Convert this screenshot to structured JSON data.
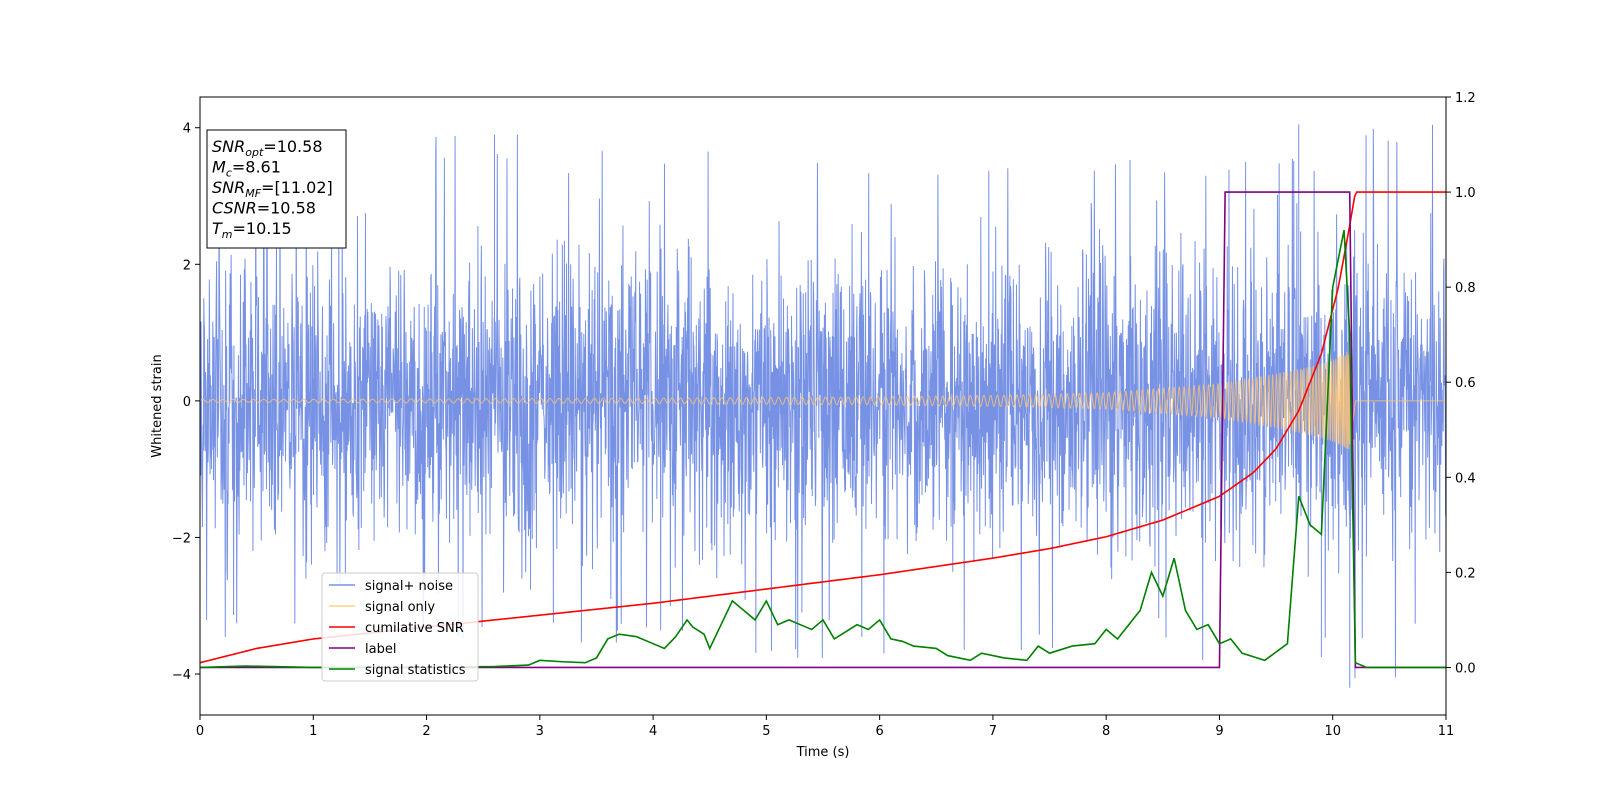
{
  "chart_data": {
    "type": "line",
    "xlabel": "Time (s)",
    "ylabel": "Whitened strain",
    "xlim": [
      0,
      11
    ],
    "ylim": [
      -4.6,
      4.45
    ],
    "y2lim": [
      -0.1,
      1.2
    ],
    "xticks": [
      "0",
      "1",
      "2",
      "3",
      "4",
      "5",
      "6",
      "7",
      "8",
      "9",
      "10",
      "11"
    ],
    "yticks": [
      "4",
      "2",
      "0",
      "−2",
      "−4"
    ],
    "y2ticks": [
      "1.2",
      "1.0",
      "0.8",
      "0.6",
      "0.4",
      "0.2",
      "0.0"
    ],
    "annotations": [
      {
        "base": "SNR",
        "sub": "opt",
        "value": "=10.58"
      },
      {
        "base": "M",
        "sub": "c",
        "value": "=8.61"
      },
      {
        "base": "SNR",
        "sub": "MF",
        "value": "=[11.02]"
      },
      {
        "base": "CSNR",
        "sub": "",
        "value": "=10.58"
      },
      {
        "base": "T",
        "sub": "m",
        "value": "=10.15"
      }
    ],
    "legend_position": "lower-left",
    "series": [
      {
        "name": "signal+ noise",
        "axis": "left",
        "color": "#5577dd",
        "description": "noise band",
        "envelope_min": [
          -3.5,
          -3.4,
          -3.5,
          -3.6,
          -3.7,
          -3.8,
          -3.7,
          -3.7,
          -3.8,
          -3.7,
          -4.2,
          -3.7
        ],
        "envelope_max": [
          3.9,
          3.9,
          3.9,
          3.7,
          3.7,
          3.7,
          3.7,
          3.6,
          3.6,
          3.6,
          4.05,
          3.6
        ],
        "peak_points": [
          [
            2.6,
            3.9
          ],
          [
            9.7,
            4.05
          ],
          [
            9.9,
            -3.75
          ],
          [
            10.15,
            -4.2
          ]
        ]
      },
      {
        "name": "signal only",
        "axis": "left",
        "color": "#ffc470",
        "amplitude": [
          [
            0,
            0.02
          ],
          [
            2,
            0.03
          ],
          [
            4,
            0.04
          ],
          [
            6,
            0.06
          ],
          [
            7,
            0.08
          ],
          [
            8,
            0.12
          ],
          [
            9,
            0.25
          ],
          [
            9.5,
            0.4
          ],
          [
            9.8,
            0.5
          ],
          [
            10.0,
            0.6
          ],
          [
            10.15,
            0.75
          ],
          [
            10.2,
            0.0
          ],
          [
            11,
            0.0
          ]
        ]
      },
      {
        "name": "cumilative SNR",
        "axis": "right",
        "color": "#ff0000",
        "points": [
          [
            0,
            0.01
          ],
          [
            0.5,
            0.04
          ],
          [
            1,
            0.06
          ],
          [
            2,
            0.085
          ],
          [
            3,
            0.11
          ],
          [
            4,
            0.135
          ],
          [
            5,
            0.165
          ],
          [
            6,
            0.195
          ],
          [
            7,
            0.23
          ],
          [
            7.5,
            0.25
          ],
          [
            8,
            0.275
          ],
          [
            8.5,
            0.31
          ],
          [
            9,
            0.36
          ],
          [
            9.3,
            0.41
          ],
          [
            9.5,
            0.46
          ],
          [
            9.7,
            0.54
          ],
          [
            9.9,
            0.66
          ],
          [
            10.05,
            0.8
          ],
          [
            10.15,
            0.93
          ],
          [
            10.2,
            1.0
          ],
          [
            11,
            1.0
          ]
        ]
      },
      {
        "name": "label",
        "axis": "right",
        "color": "#800080",
        "points": [
          [
            0,
            0.0
          ],
          [
            9.0,
            0.0
          ],
          [
            9.05,
            1.0
          ],
          [
            10.15,
            1.0
          ],
          [
            10.2,
            0.0
          ],
          [
            11,
            0.0
          ]
        ]
      },
      {
        "name": "signal statistics",
        "axis": "right",
        "color": "#008000",
        "points": [
          [
            0,
            0.0
          ],
          [
            0.4,
            0.003
          ],
          [
            1,
            0.0
          ],
          [
            2,
            0.0
          ],
          [
            2.6,
            0.002
          ],
          [
            2.9,
            0.005
          ],
          [
            3.0,
            0.015
          ],
          [
            3.2,
            0.012
          ],
          [
            3.4,
            0.01
          ],
          [
            3.5,
            0.02
          ],
          [
            3.6,
            0.06
          ],
          [
            3.7,
            0.07
          ],
          [
            3.85,
            0.065
          ],
          [
            4.0,
            0.05
          ],
          [
            4.1,
            0.04
          ],
          [
            4.2,
            0.065
          ],
          [
            4.3,
            0.1
          ],
          [
            4.35,
            0.085
          ],
          [
            4.45,
            0.07
          ],
          [
            4.5,
            0.04
          ],
          [
            4.6,
            0.09
          ],
          [
            4.7,
            0.14
          ],
          [
            4.8,
            0.12
          ],
          [
            4.9,
            0.1
          ],
          [
            5.0,
            0.14
          ],
          [
            5.1,
            0.09
          ],
          [
            5.2,
            0.1
          ],
          [
            5.3,
            0.09
          ],
          [
            5.4,
            0.08
          ],
          [
            5.5,
            0.1
          ],
          [
            5.6,
            0.06
          ],
          [
            5.7,
            0.075
          ],
          [
            5.8,
            0.09
          ],
          [
            5.9,
            0.08
          ],
          [
            6.0,
            0.1
          ],
          [
            6.1,
            0.06
          ],
          [
            6.2,
            0.055
          ],
          [
            6.3,
            0.045
          ],
          [
            6.5,
            0.04
          ],
          [
            6.6,
            0.025
          ],
          [
            6.8,
            0.015
          ],
          [
            6.9,
            0.03
          ],
          [
            7.1,
            0.02
          ],
          [
            7.3,
            0.015
          ],
          [
            7.4,
            0.045
          ],
          [
            7.5,
            0.03
          ],
          [
            7.7,
            0.045
          ],
          [
            7.9,
            0.05
          ],
          [
            8.0,
            0.08
          ],
          [
            8.1,
            0.06
          ],
          [
            8.3,
            0.12
          ],
          [
            8.4,
            0.2
          ],
          [
            8.5,
            0.15
          ],
          [
            8.6,
            0.23
          ],
          [
            8.7,
            0.12
          ],
          [
            8.8,
            0.08
          ],
          [
            8.9,
            0.09
          ],
          [
            9.0,
            0.05
          ],
          [
            9.1,
            0.06
          ],
          [
            9.2,
            0.03
          ],
          [
            9.4,
            0.015
          ],
          [
            9.6,
            0.05
          ],
          [
            9.7,
            0.36
          ],
          [
            9.8,
            0.3
          ],
          [
            9.9,
            0.28
          ],
          [
            10.0,
            0.8
          ],
          [
            10.1,
            0.92
          ],
          [
            10.15,
            0.7
          ],
          [
            10.2,
            0.01
          ],
          [
            10.3,
            0.0
          ],
          [
            11,
            0.0
          ]
        ]
      }
    ]
  },
  "colors": {
    "noise": "#5577dd",
    "signal": "#ffc470",
    "cumulative_snr": "#ff0000",
    "label": "#800080",
    "statistics": "#008000"
  }
}
